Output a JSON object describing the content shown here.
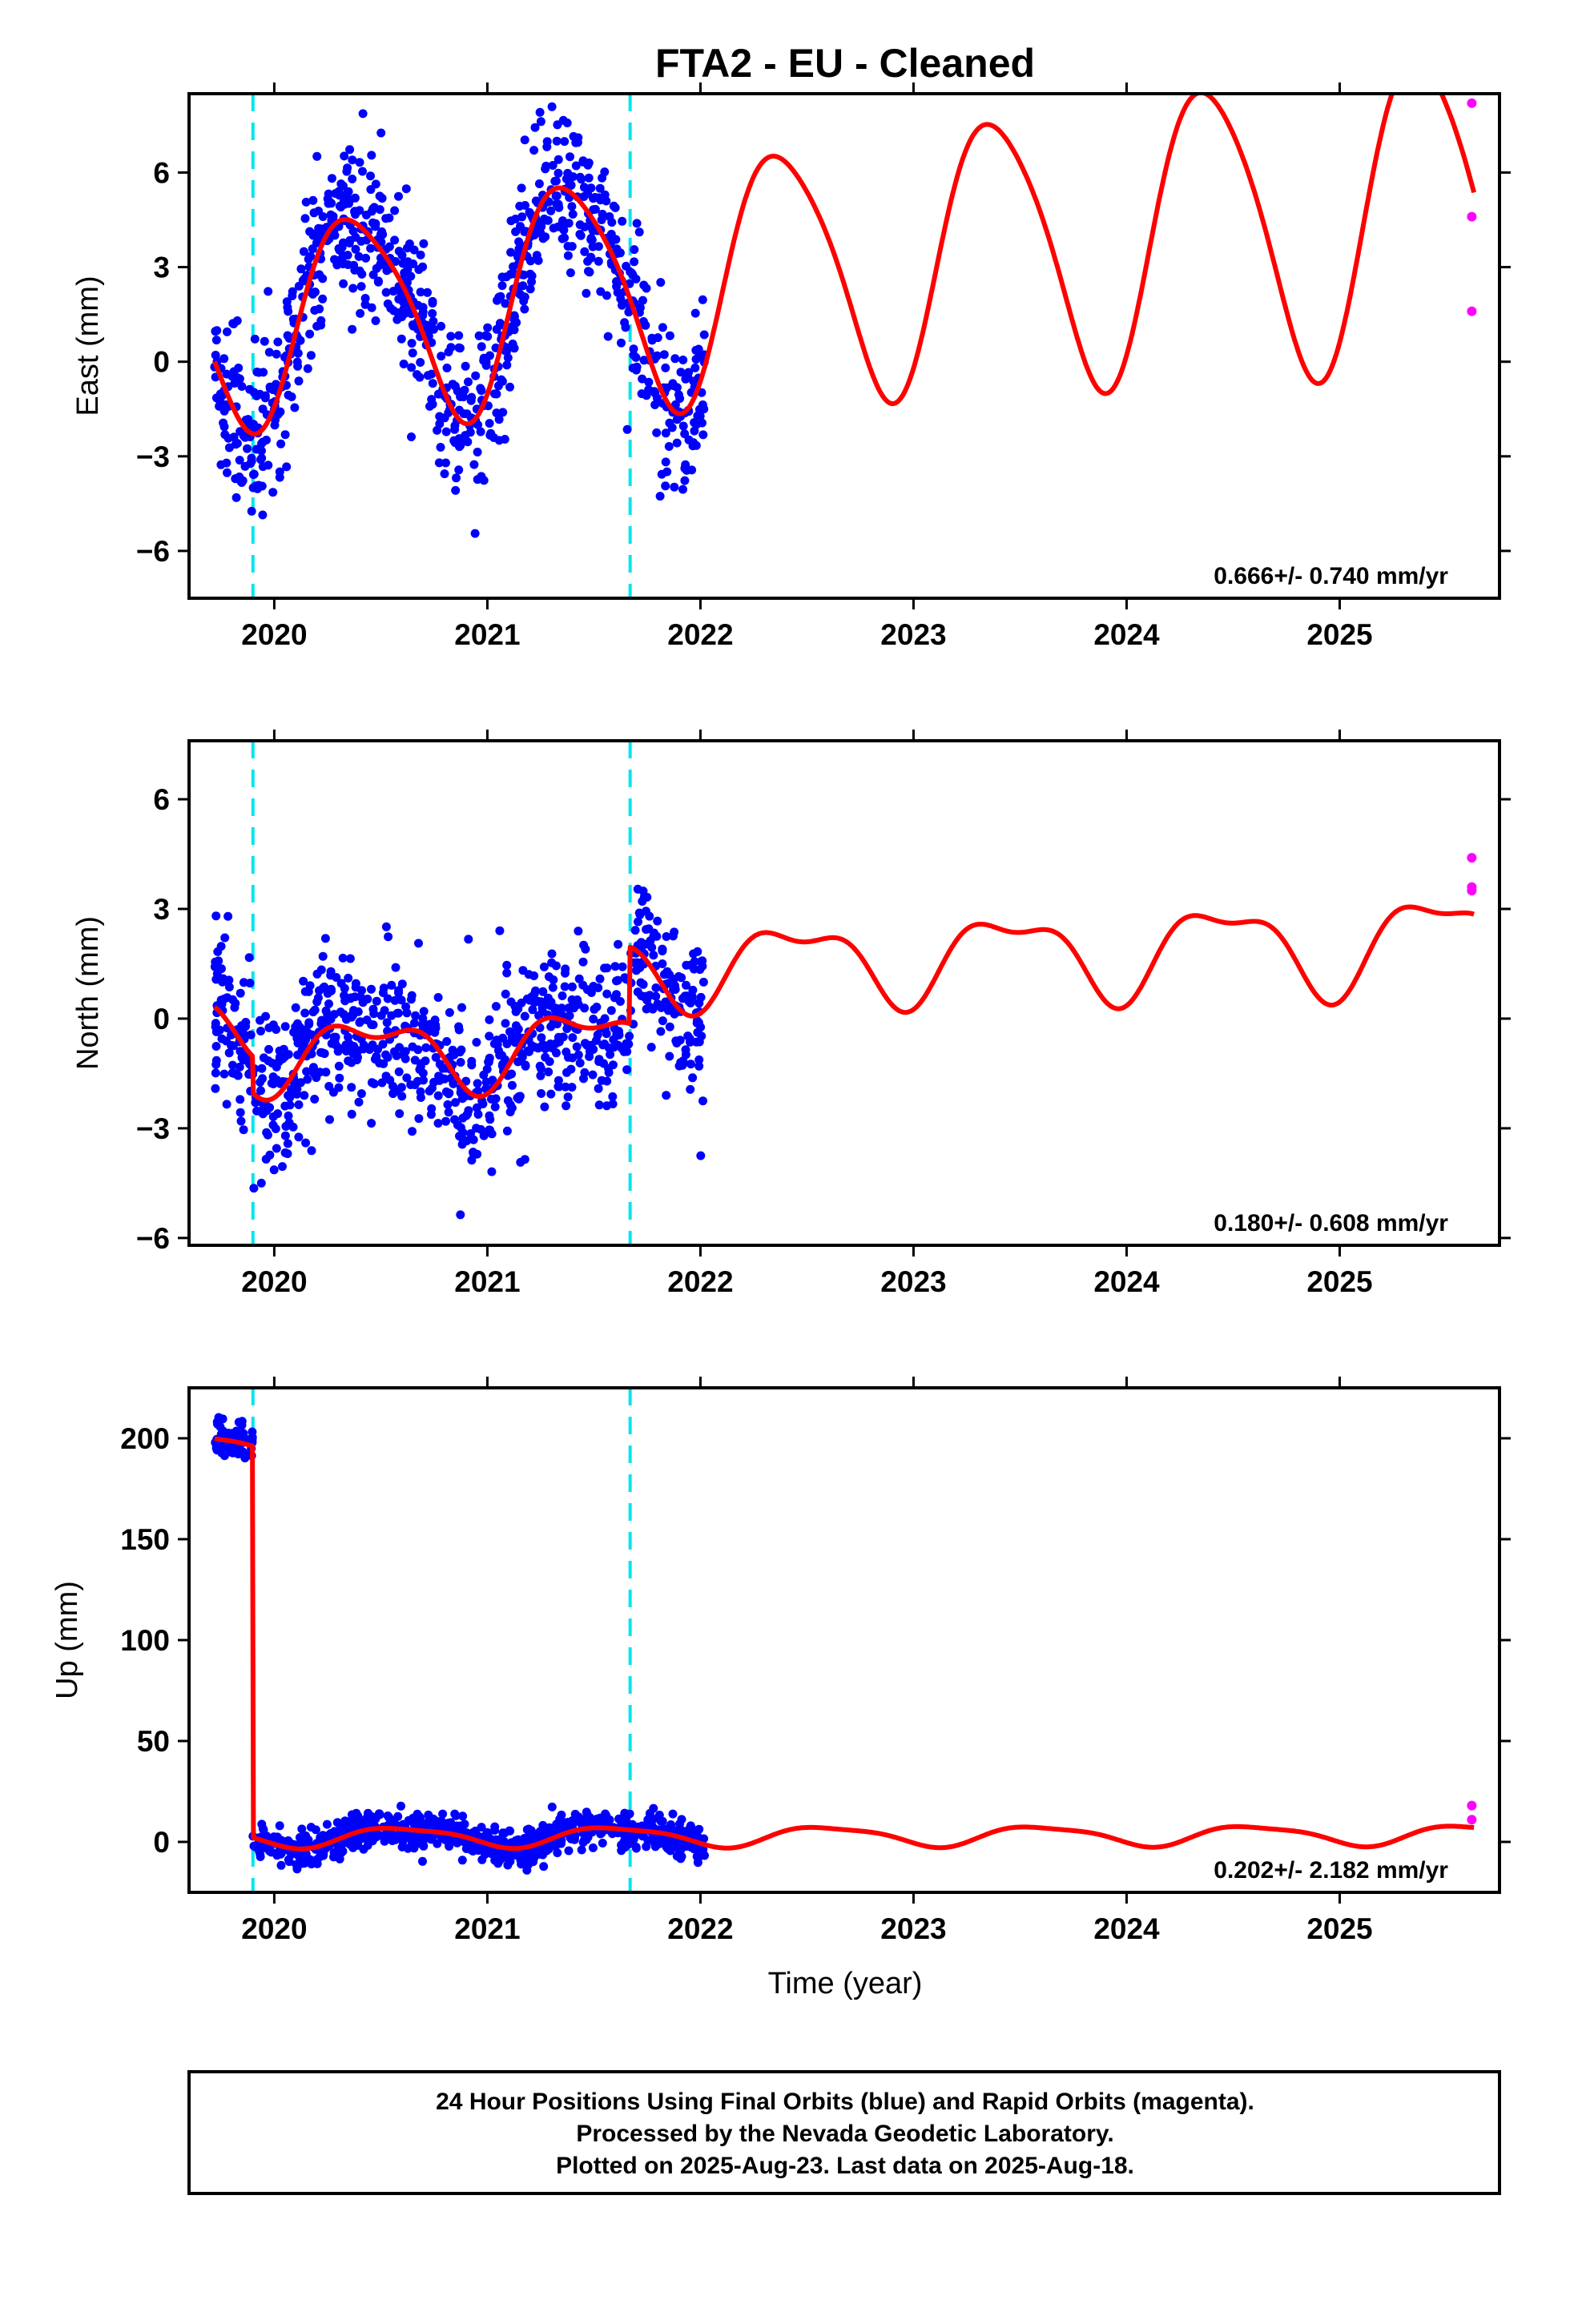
{
  "title": "FTA2  - EU - Cleaned",
  "xlabel": "Time (year)",
  "footer": {
    "line1": "24 Hour Positions Using Final Orbits (blue) and Rapid Orbits (magenta).",
    "line2": "Processed by the Nevada Geodetic Laboratory.",
    "line3": "Plotted on 2025-Aug-23. Last data on 2025-Aug-18."
  },
  "colors": {
    "final_orbits": "#0000ff",
    "rapid_orbits": "#ff00ff",
    "model": "#ff0000",
    "offset_line": "#00e5ee",
    "frame": "#000000"
  },
  "chart_data": [
    {
      "type": "scatter",
      "ylabel": "East (mm)",
      "rate": "0.666+/- 0.740 mm/yr",
      "xlim": [
        2019.6,
        2025.75
      ],
      "ylim": [
        -7.5,
        8.5
      ],
      "xticks": [
        "2020",
        "2021",
        "2022",
        "2023",
        "2024",
        "2025"
      ],
      "yticks": [
        "−6",
        "−3",
        "0",
        "3",
        "6"
      ],
      "ytick_values": [
        -6,
        -3,
        0,
        3,
        6
      ],
      "offset_lines": [
        2019.9,
        2021.67
      ],
      "final_range": [
        2019.72,
        2022.02
      ],
      "noise_sd": 1.25,
      "model": {
        "offset": 1.2,
        "trend": 0.666,
        "t0": 2019.9,
        "amp": 3.1,
        "amp_growth": 0.35,
        "peak": 2020.38,
        "semi_amp": 0.55,
        "semi_peak": 2020.2,
        "steps": []
      },
      "rapid_points": [
        {
          "x": 2025.62,
          "y": 8.2
        },
        {
          "x": 2025.62,
          "y": 4.6
        },
        {
          "x": 2025.62,
          "y": 1.6
        }
      ]
    },
    {
      "type": "scatter",
      "ylabel": "North (mm)",
      "rate": "0.180+/- 0.608 mm/yr",
      "xlim": [
        2019.6,
        2025.75
      ],
      "ylim": [
        -6.2,
        7.6
      ],
      "xticks": [
        "2020",
        "2021",
        "2022",
        "2023",
        "2024",
        "2025"
      ],
      "yticks": [
        "−6",
        "−3",
        "0",
        "3",
        "6"
      ],
      "ytick_values": [
        -6,
        -3,
        0,
        3,
        6
      ],
      "offset_lines": [
        2019.9,
        2021.67
      ],
      "final_range": [
        2019.72,
        2022.02
      ],
      "noise_sd": 1.1,
      "model": {
        "offset": 0.0,
        "trend": 0.18,
        "t0": 2019.9,
        "amp": 0.8,
        "amp_growth": 0.08,
        "peak": 2020.45,
        "semi_amp": 0.45,
        "semi_peak": 2020.22,
        "steps": [
          {
            "x": 2019.9,
            "dy": -1.0
          },
          {
            "x": 2021.67,
            "dy": 2.1
          }
        ]
      },
      "rapid_points": [
        {
          "x": 2025.62,
          "y": 4.4
        },
        {
          "x": 2025.62,
          "y": 3.6
        },
        {
          "x": 2025.62,
          "y": 3.5
        }
      ]
    },
    {
      "type": "scatter",
      "ylabel": "Up (mm)",
      "rate": "0.202+/- 2.182 mm/yr",
      "xlim": [
        2019.6,
        2025.75
      ],
      "ylim": [
        -25,
        225
      ],
      "xticks": [
        "2020",
        "2021",
        "2022",
        "2023",
        "2024",
        "2025"
      ],
      "yticks": [
        "0",
        "50",
        "100",
        "150",
        "200"
      ],
      "ytick_values": [
        0,
        50,
        100,
        150,
        200
      ],
      "offset_lines": [
        2019.9,
        2021.67
      ],
      "final_range": [
        2019.72,
        2022.02
      ],
      "noise_sd": 4.5,
      "model": {
        "offset": 197.0,
        "trend": -3.5,
        "t0": 2019.72,
        "amp": 4.8,
        "amp_growth": 0.0,
        "peak": 2020.6,
        "semi_amp": 1.2,
        "semi_peak": 2020.4,
        "steps": [
          {
            "x": 2019.9,
            "dy": -194.0
          }
        ]
      },
      "post_step_trend": 0.202,
      "rapid_points": [
        {
          "x": 2025.62,
          "y": 18
        },
        {
          "x": 2025.62,
          "y": 11
        }
      ]
    }
  ]
}
